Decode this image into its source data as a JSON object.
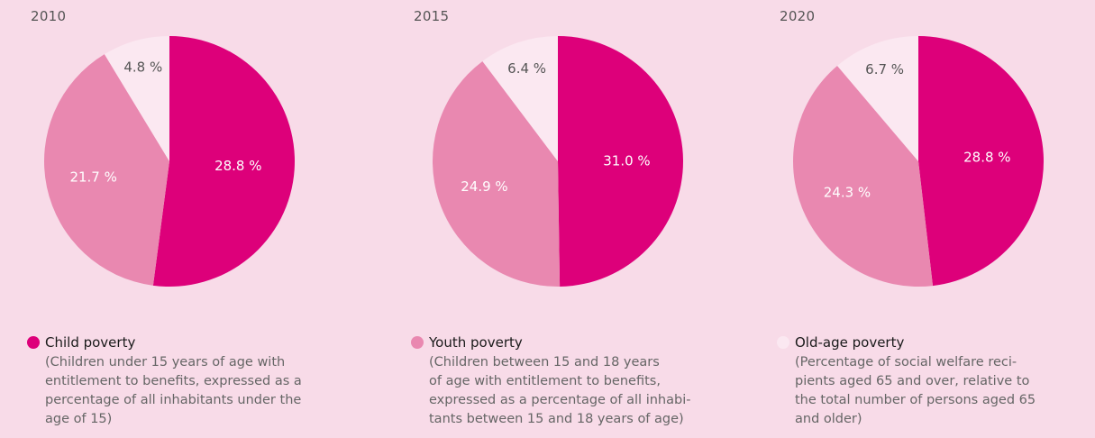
{
  "chart_data": [
    {
      "type": "pie",
      "title": "2010",
      "slices": [
        {
          "label": "Child poverty",
          "value": 28.8,
          "display": "28.8 %",
          "color": "#dd007a"
        },
        {
          "label": "Youth poverty",
          "value": 21.7,
          "display": "21.7 %",
          "color": "#e988b0"
        },
        {
          "label": "Old-age poverty",
          "value": 4.8,
          "display": "4.8 %",
          "color": "#fbe8f1"
        }
      ]
    },
    {
      "type": "pie",
      "title": "2015",
      "slices": [
        {
          "label": "Child poverty",
          "value": 31.0,
          "display": "31.0 %",
          "color": "#dd007a"
        },
        {
          "label": "Youth poverty",
          "value": 24.9,
          "display": "24.9 %",
          "color": "#e988b0"
        },
        {
          "label": "Old-age poverty",
          "value": 6.4,
          "display": "6.4 %",
          "color": "#fbe8f1"
        }
      ]
    },
    {
      "type": "pie",
      "title": "2020",
      "slices": [
        {
          "label": "Child poverty",
          "value": 28.8,
          "display": "28.8 %",
          "color": "#dd007a"
        },
        {
          "label": "Youth poverty",
          "value": 24.3,
          "display": "24.3 %",
          "color": "#e988b0"
        },
        {
          "label": "Old-age poverty",
          "value": 6.7,
          "display": "6.7 %",
          "color": "#fbe8f1"
        }
      ]
    }
  ],
  "legend": [
    {
      "title": "Child poverty",
      "color": "#dd007a",
      "lines": [
        "(Children under 15 years of age with",
        "entitlement to benefits, expressed as a",
        "percentage of all inhabitants under the",
        "age of 15)"
      ]
    },
    {
      "title": "Youth poverty",
      "color": "#e988b0",
      "lines": [
        "(Children between 15 and 18 years",
        "of age with entitlement to benefits,",
        "expressed as a percentage of all inhabi-",
        "tants between 15 and 18 years of age)"
      ]
    },
    {
      "title": "Old-age poverty",
      "color": "#fbe8f1",
      "lines": [
        "(Percentage of social welfare reci-",
        "pients aged 65 and over, relative to",
        "the total number of persons aged 65",
        "and older)"
      ]
    }
  ]
}
